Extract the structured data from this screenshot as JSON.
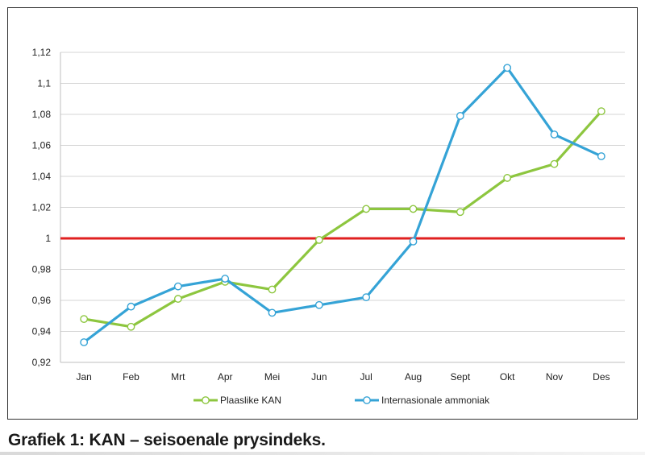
{
  "chart_data": {
    "type": "line",
    "categories": [
      "Jan",
      "Feb",
      "Mrt",
      "Apr",
      "Mei",
      "Jun",
      "Jul",
      "Aug",
      "Sept",
      "Okt",
      "Nov",
      "Des"
    ],
    "series": [
      {
        "name": "Plaaslike KAN",
        "color": "#8dc63f",
        "values": [
          0.948,
          0.943,
          0.961,
          0.972,
          0.967,
          0.999,
          1.019,
          1.019,
          1.017,
          1.039,
          1.048,
          1.082
        ]
      },
      {
        "name": "Internasionale ammoniak",
        "color": "#35a3d6",
        "values": [
          0.933,
          0.956,
          0.969,
          0.974,
          0.952,
          0.957,
          0.962,
          0.998,
          1.079,
          1.11,
          1.067,
          1.053
        ]
      }
    ],
    "reference_line": {
      "value": 1,
      "color": "#e02020"
    },
    "ylim": [
      0.92,
      1.12
    ],
    "yticks": [
      0.92,
      0.94,
      0.96,
      0.98,
      1,
      1.02,
      1.04,
      1.06,
      1.08,
      1.1,
      1.12
    ],
    "ytick_labels": [
      "0,92",
      "0,94",
      "0,96",
      "0,98",
      "1",
      "1,02",
      "1,04",
      "1,06",
      "1,08",
      "1,1",
      "1,12"
    ],
    "grid": true,
    "legend_position": "bottom",
    "caption": "Grafiek 1: KAN – seisoenale prysindeks."
  }
}
